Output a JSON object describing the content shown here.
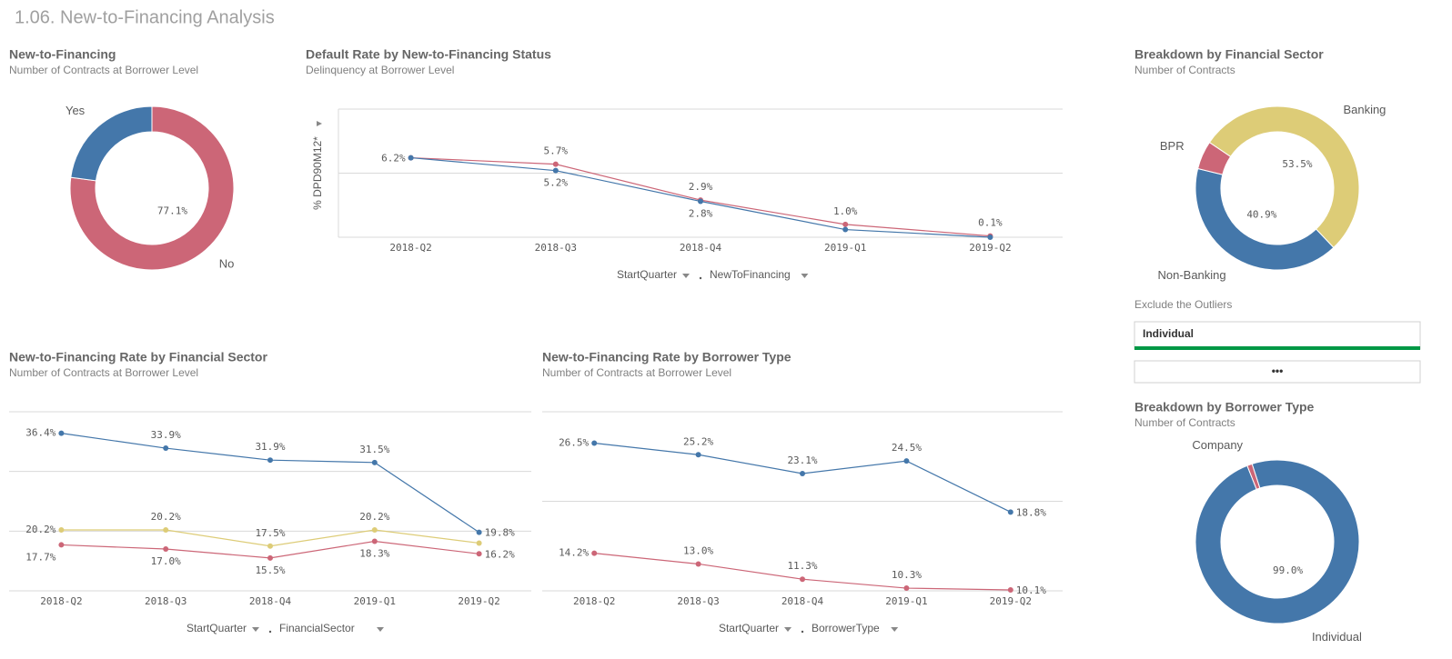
{
  "page_title": "1.06. New-to-Financing Analysis",
  "filter": {
    "label": "Exclude the Outliers",
    "selected": "Individual",
    "more": "•••"
  },
  "chart_data": [
    {
      "type": "pie",
      "donut": true,
      "title": "New-to-Financing",
      "subtitle": "Number of Contracts at Borrower Level",
      "categories": [
        "No",
        "Yes"
      ],
      "values": [
        77.1,
        22.9
      ],
      "value_labels": [
        "77.1%",
        null
      ],
      "colors": [
        "#cc6677",
        "#4477aa"
      ]
    },
    {
      "type": "line",
      "title": "Default Rate by New-to-Financing Status",
      "subtitle": "Delinquency at Borrower Level",
      "y_label": "% DPD90M12*",
      "categories": [
        "2018-Q2",
        "2018-Q3",
        "2018-Q4",
        "2019-Q1",
        "2019-Q2"
      ],
      "series": [
        {
          "color": "#cc6677",
          "values": [
            6.2,
            5.7,
            2.9,
            1.0,
            0.1
          ],
          "value_labels": [
            "6.2%",
            "5.7%",
            "2.9%",
            "1.0%",
            "0.1%"
          ]
        },
        {
          "color": "#4477aa",
          "values": [
            6.2,
            5.2,
            2.8,
            0.6,
            0.0
          ],
          "value_labels": [
            null,
            "5.2%",
            "2.8%",
            null,
            null
          ]
        }
      ],
      "ylim": [
        0,
        10
      ],
      "yticks": [
        0,
        5,
        10
      ],
      "ytick_labels": false,
      "grid": true,
      "dimensions": [
        "StartQuarter",
        "NewToFinancing"
      ]
    },
    {
      "type": "line",
      "title": "New-to-Financing Rate by Financial Sector",
      "subtitle": "Number of Contracts at Borrower Level",
      "categories": [
        "2018-Q2",
        "2018-Q3",
        "2018-Q4",
        "2019-Q1",
        "2019-Q2"
      ],
      "series": [
        {
          "color": "#4477aa",
          "values": [
            36.4,
            33.9,
            31.9,
            31.5,
            19.8
          ],
          "value_labels": [
            "36.4%",
            "33.9%",
            "31.9%",
            "31.5%",
            "19.8%"
          ]
        },
        {
          "color": "#ddcc77",
          "values": [
            20.2,
            20.2,
            17.5,
            20.2,
            18.0
          ],
          "value_labels": [
            "20.2%",
            "20.2%",
            "17.5%",
            "20.2%",
            null
          ]
        },
        {
          "color": "#cc6677",
          "values": [
            17.7,
            17.0,
            15.5,
            18.3,
            16.2
          ],
          "value_labels": [
            "17.7%",
            "17.0%",
            "15.5%",
            "18.3%",
            "16.2%"
          ]
        }
      ],
      "ylim": [
        10,
        40
      ],
      "yticks": [
        10,
        20,
        30,
        40
      ],
      "ytick_labels": false,
      "grid": true,
      "dimensions": [
        "StartQuarter",
        "FinancialSector"
      ]
    },
    {
      "type": "line",
      "title": "New-to-Financing Rate by Borrower Type",
      "subtitle": "Number of Contracts at Borrower Level",
      "categories": [
        "2018-Q2",
        "2018-Q3",
        "2018-Q4",
        "2019-Q1",
        "2019-Q2"
      ],
      "series": [
        {
          "color": "#4477aa",
          "values": [
            26.5,
            25.2,
            23.1,
            24.5,
            18.8
          ],
          "value_labels": [
            "26.5%",
            "25.2%",
            "23.1%",
            "24.5%",
            "18.8%"
          ]
        },
        {
          "color": "#cc6677",
          "values": [
            14.2,
            13.0,
            11.3,
            10.3,
            10.1
          ],
          "value_labels": [
            "14.2%",
            "13.0%",
            "11.3%",
            "10.3%",
            "10.1%"
          ]
        }
      ],
      "ylim": [
        10,
        30
      ],
      "yticks": [
        10,
        20,
        30
      ],
      "ytick_labels": false,
      "grid": true,
      "dimensions": [
        "StartQuarter",
        "BorrowerType"
      ]
    },
    {
      "type": "pie",
      "donut": true,
      "title": "Breakdown by Financial Sector",
      "subtitle": "Number of Contracts",
      "categories": [
        "Banking",
        "Non-Banking",
        "BPR"
      ],
      "values": [
        53.5,
        40.9,
        5.6
      ],
      "value_labels": [
        "53.5%",
        "40.9%",
        null
      ],
      "colors": [
        "#ddcc77",
        "#4477aa",
        "#cc6677"
      ]
    },
    {
      "type": "pie",
      "donut": true,
      "title": "Breakdown by Borrower Type",
      "subtitle": "Number of Contracts",
      "categories": [
        "Individual",
        "Company"
      ],
      "values": [
        99.0,
        1.0
      ],
      "value_labels": [
        "99.0%",
        null
      ],
      "colors": [
        "#4477aa",
        "#cc6677"
      ]
    }
  ]
}
